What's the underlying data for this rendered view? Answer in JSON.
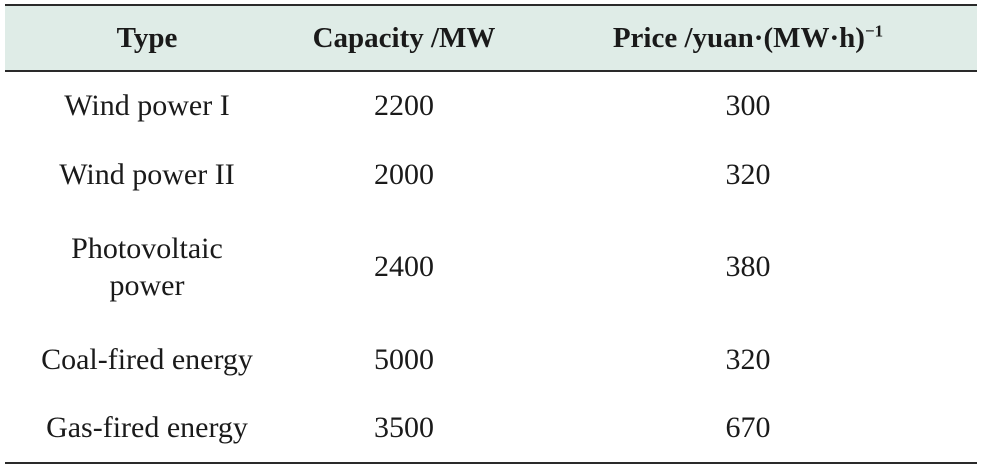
{
  "table": {
    "headers": {
      "type": "Type",
      "capacity": "Capacity /MW",
      "price": "Price /yuan·(MW·h)",
      "price_superscript": "−1"
    },
    "rows": [
      {
        "type": "Wind power I",
        "capacity": "2200",
        "price": "300"
      },
      {
        "type": "Wind power II",
        "capacity": "2000",
        "price": "320"
      },
      {
        "type": "Photovoltaic power",
        "capacity": "2400",
        "price": "380"
      },
      {
        "type": "Coal-fired energy",
        "capacity": "5000",
        "price": "320"
      },
      {
        "type": "Gas-fired energy",
        "capacity": "3500",
        "price": "670"
      }
    ]
  },
  "colors": {
    "header_background": "#dfece7",
    "rule": "#2a2a2a"
  }
}
